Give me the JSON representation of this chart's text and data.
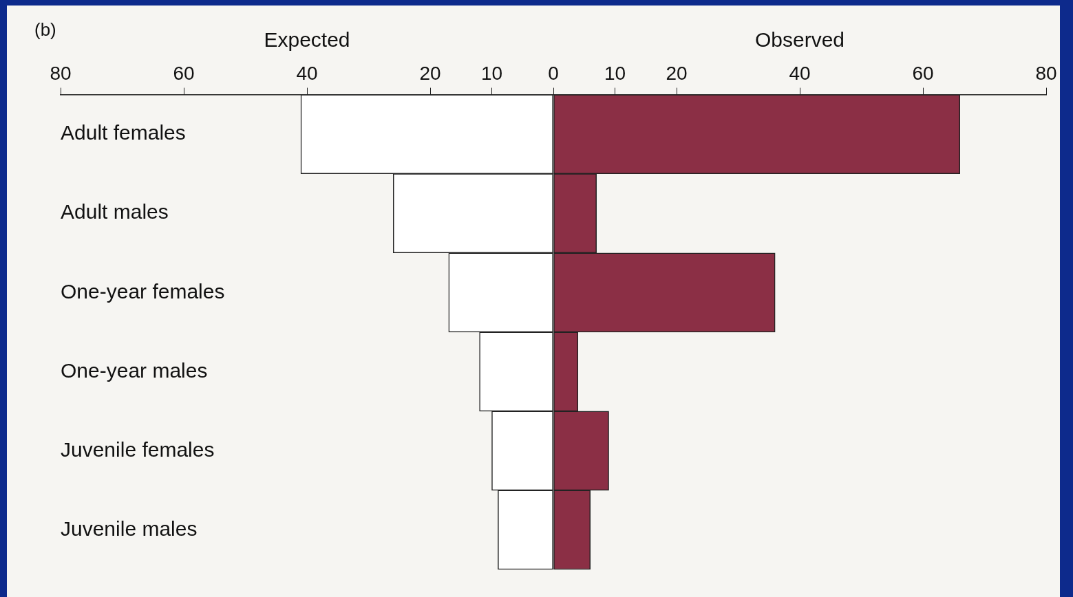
{
  "chart_data": {
    "type": "bar",
    "orientation": "horizontal",
    "title": "(b)",
    "categories": [
      "Adult females",
      "Adult males",
      "One-year females",
      "One-year males",
      "Juvenile females",
      "Juvenile males"
    ],
    "series": [
      {
        "name": "Expected",
        "color": "#ffffff",
        "values": [
          -41,
          -26,
          -17,
          -12,
          -10,
          -9
        ]
      },
      {
        "name": "Observed",
        "color": "#8b2f45",
        "values": [
          66,
          7,
          36,
          4,
          9,
          6
        ]
      }
    ],
    "xlim": [
      -80,
      80
    ],
    "xticks": [
      {
        "value": -80,
        "label": "80"
      },
      {
        "value": -60,
        "label": "60"
      },
      {
        "value": -40,
        "label": "40"
      },
      {
        "value": -20,
        "label": "20"
      },
      {
        "value": -10,
        "label": "10"
      },
      0,
      10,
      20,
      40,
      60,
      80
    ],
    "stacked": true,
    "grid": false,
    "legend": false
  }
}
